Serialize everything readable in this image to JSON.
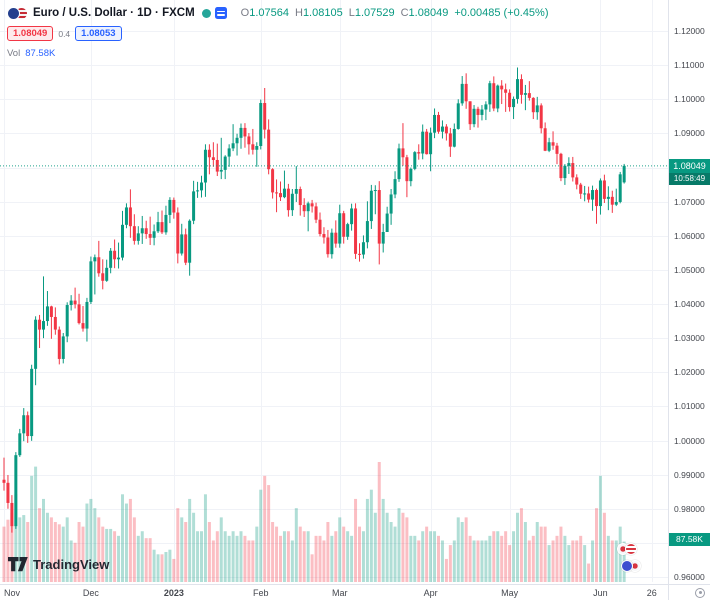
{
  "header": {
    "title": "Euro / U.S. Dollar · 1D · FXCM",
    "ohlc": {
      "o_label": "O",
      "o": "1.07564",
      "h_label": "H",
      "h": "1.08105",
      "l_label": "L",
      "l": "1.07529",
      "c_label": "C",
      "c": "1.08049",
      "change": "+0.00485 (+0.45%)"
    },
    "bid": "1.08049",
    "spread": "0.4",
    "ask": "1.08053",
    "vol_label": "Vol",
    "vol_value": "87.58K"
  },
  "price_axis": {
    "last_price_label": "1.08049",
    "countdown": "10:58:49",
    "volume_badge": "87.58K"
  },
  "watermark": {
    "text": "TradingView"
  },
  "icons": {
    "symbol_logo": "eur-usd-circle-flags",
    "market_status": "teal-dot",
    "stream": "blue-list",
    "axis_settings": "clock-circle",
    "watermark_logo": "tradingview-tv-mark",
    "stickers": "circle-flag-pairs"
  },
  "colors": {
    "up": "#089981",
    "down": "#f23645",
    "vol_up": "rgba(8,153,129,0.32)",
    "vol_down": "rgba(242,54,69,0.32)",
    "accent_blue": "#2962ff",
    "last_price_line": "#089981",
    "grid": "#f0f2f7"
  },
  "chart_data": {
    "type": "candlestick",
    "title": "Euro / U.S. Dollar, 1D, FXCM",
    "x_unit": "trading days, Nov 2022 - Jun 2023 (values per candle: [open, high, low, close, volume_K])",
    "price_range": [
      0.96,
      1.12
    ],
    "grid": true,
    "last_price": 1.08049,
    "y_tick_labels": [
      "1.12000",
      "1.11000",
      "1.10000",
      "1.09000",
      "1.08000",
      "1.07000",
      "1.06000",
      "1.05000",
      "1.04000",
      "1.03000",
      "1.02000",
      "1.01000",
      "1.00000",
      "0.99000",
      "0.98000",
      "0.97000",
      "0.96000"
    ],
    "x_ticks": [
      {
        "label": "Nov",
        "index": 0
      },
      {
        "label": "Dec",
        "index": 22
      },
      {
        "label": "2023",
        "index": 43,
        "bold": true
      },
      {
        "label": "Feb",
        "index": 65
      },
      {
        "label": "Mar",
        "index": 85
      },
      {
        "label": "Apr",
        "index": 108
      },
      {
        "label": "May",
        "index": 128
      },
      {
        "label": "Jun",
        "index": 151
      },
      {
        "label": "26",
        "index": 164
      }
    ],
    "candles": [
      [
        0.9885,
        0.995,
        0.9853,
        0.9876,
        120
      ],
      [
        0.9876,
        0.9899,
        0.98,
        0.9817,
        135
      ],
      [
        0.9817,
        0.984,
        0.973,
        0.9749,
        150
      ],
      [
        0.9749,
        0.9966,
        0.9741,
        0.9957,
        190
      ],
      [
        0.9957,
        1.0034,
        0.9952,
        1.0021,
        140
      ],
      [
        1.0021,
        1.0095,
        0.9998,
        1.0074,
        145
      ],
      [
        1.0074,
        1.0085,
        0.9993,
        1.0013,
        130
      ],
      [
        1.0013,
        1.0222,
        0.9999,
        1.021,
        230
      ],
      [
        1.021,
        1.0364,
        1.0162,
        1.0354,
        250
      ],
      [
        1.0354,
        1.0368,
        1.0271,
        1.0325,
        160
      ],
      [
        1.0325,
        1.0481,
        1.03,
        1.035,
        180
      ],
      [
        1.035,
        1.0438,
        1.0336,
        1.0393,
        150
      ],
      [
        1.0393,
        1.0395,
        1.0298,
        1.0362,
        140
      ],
      [
        1.0362,
        1.039,
        1.031,
        1.0325,
        130
      ],
      [
        1.0325,
        1.0334,
        1.0223,
        1.0239,
        125
      ],
      [
        1.0239,
        1.0315,
        1.0226,
        1.0305,
        120
      ],
      [
        1.0305,
        1.0405,
        1.0288,
        1.0397,
        140
      ],
      [
        1.0397,
        1.0426,
        1.0381,
        1.041,
        90
      ],
      [
        1.041,
        1.0448,
        1.0387,
        1.0399,
        85
      ],
      [
        1.0399,
        1.043,
        1.034,
        1.0344,
        130
      ],
      [
        1.0344,
        1.0394,
        1.0319,
        1.0328,
        120
      ],
      [
        1.0328,
        1.0418,
        1.029,
        1.0406,
        170
      ],
      [
        1.0406,
        1.0539,
        1.04,
        1.0525,
        180
      ],
      [
        1.0525,
        1.0545,
        1.0428,
        1.0537,
        160
      ],
      [
        1.0537,
        1.0585,
        1.048,
        1.049,
        140
      ],
      [
        1.049,
        1.0531,
        1.0443,
        1.0468,
        120
      ],
      [
        1.0468,
        1.053,
        1.0465,
        1.0506,
        115
      ],
      [
        1.0506,
        1.0564,
        1.049,
        1.0556,
        115
      ],
      [
        1.0556,
        1.0589,
        1.0505,
        1.0531,
        110
      ],
      [
        1.0531,
        1.058,
        1.0504,
        1.0536,
        100
      ],
      [
        1.0536,
        1.0673,
        1.0528,
        1.0632,
        190
      ],
      [
        1.0632,
        1.0695,
        1.0622,
        1.0683,
        170
      ],
      [
        1.0683,
        1.0736,
        1.0594,
        1.0628,
        180
      ],
      [
        1.0628,
        1.0663,
        1.0574,
        1.0585,
        140
      ],
      [
        1.0585,
        1.0628,
        1.0574,
        1.0607,
        100
      ],
      [
        1.0607,
        1.0658,
        1.0576,
        1.0622,
        110
      ],
      [
        1.0622,
        1.0644,
        1.0591,
        1.0605,
        95
      ],
      [
        1.0605,
        1.0656,
        1.0573,
        1.0594,
        95
      ],
      [
        1.0594,
        1.0633,
        1.0572,
        1.0613,
        70
      ],
      [
        1.0613,
        1.067,
        1.0608,
        1.064,
        60
      ],
      [
        1.064,
        1.0674,
        1.0605,
        1.061,
        60
      ],
      [
        1.061,
        1.0688,
        1.0603,
        1.0661,
        65
      ],
      [
        1.0661,
        1.0713,
        1.0637,
        1.0705,
        70
      ],
      [
        1.0705,
        1.0712,
        1.065,
        1.0668,
        50
      ],
      [
        1.0668,
        1.0683,
        1.0519,
        1.0548,
        160
      ],
      [
        1.0548,
        1.0635,
        1.0542,
        1.0604,
        140
      ],
      [
        1.0604,
        1.0621,
        1.0514,
        1.0521,
        130
      ],
      [
        1.0521,
        1.0648,
        1.0483,
        1.0644,
        180
      ],
      [
        1.0644,
        1.0761,
        1.0634,
        1.073,
        150
      ],
      [
        1.073,
        1.0758,
        1.0711,
        1.0733,
        110
      ],
      [
        1.0733,
        1.0776,
        1.0712,
        1.0756,
        110
      ],
      [
        1.0756,
        1.0868,
        1.0714,
        1.0852,
        190
      ],
      [
        1.0852,
        1.0868,
        1.078,
        1.083,
        130
      ],
      [
        1.083,
        1.0874,
        1.0802,
        1.0822,
        90
      ],
      [
        1.0822,
        1.087,
        1.0775,
        1.0788,
        110
      ],
      [
        1.0788,
        1.0887,
        1.0766,
        1.0793,
        140
      ],
      [
        1.0793,
        1.0836,
        1.0766,
        1.0832,
        110
      ],
      [
        1.0832,
        1.0868,
        1.0802,
        1.0856,
        100
      ],
      [
        1.0856,
        1.0927,
        1.0848,
        1.0871,
        110
      ],
      [
        1.0871,
        1.0899,
        1.0835,
        1.0887,
        100
      ],
      [
        1.0887,
        1.0929,
        1.0855,
        1.0916,
        110
      ],
      [
        1.0916,
        1.093,
        1.0858,
        1.0891,
        100
      ],
      [
        1.0891,
        1.0901,
        1.0838,
        1.0868,
        90
      ],
      [
        1.0868,
        1.0913,
        1.0838,
        1.0852,
        90
      ],
      [
        1.0852,
        1.0874,
        1.0802,
        1.0863,
        120
      ],
      [
        1.0863,
        1.0999,
        1.0853,
        1.0989,
        200
      ],
      [
        1.0989,
        1.1033,
        1.0885,
        1.0911,
        230
      ],
      [
        1.0911,
        1.0941,
        1.078,
        1.0795,
        210
      ],
      [
        1.0795,
        1.0798,
        1.0709,
        1.0727,
        130
      ],
      [
        1.0727,
        1.0765,
        1.0669,
        1.0725,
        120
      ],
      [
        1.0725,
        1.0759,
        1.0702,
        1.0713,
        100
      ],
      [
        1.0713,
        1.0791,
        1.071,
        1.0738,
        110
      ],
      [
        1.0738,
        1.0752,
        1.0656,
        1.0675,
        110
      ],
      [
        1.0675,
        1.0737,
        1.0658,
        1.0723,
        90
      ],
      [
        1.0723,
        1.0804,
        1.0699,
        1.0737,
        160
      ],
      [
        1.0737,
        1.0744,
        1.0659,
        1.069,
        120
      ],
      [
        1.069,
        1.071,
        1.0655,
        1.0672,
        110
      ],
      [
        1.0672,
        1.07,
        1.0613,
        1.0695,
        110
      ],
      [
        1.0695,
        1.0705,
        1.0668,
        1.0686,
        60
      ],
      [
        1.0686,
        1.0697,
        1.0637,
        1.0647,
        100
      ],
      [
        1.0647,
        1.0668,
        1.0598,
        1.0605,
        100
      ],
      [
        1.0605,
        1.0625,
        1.0577,
        1.0595,
        90
      ],
      [
        1.0595,
        1.0617,
        1.0536,
        1.0546,
        130
      ],
      [
        1.0546,
        1.0621,
        1.0533,
        1.0609,
        100
      ],
      [
        1.0609,
        1.0645,
        1.0565,
        1.0577,
        110
      ],
      [
        1.0577,
        1.0691,
        1.0565,
        1.0666,
        140
      ],
      [
        1.0666,
        1.0673,
        1.0577,
        1.0597,
        120
      ],
      [
        1.0597,
        1.0638,
        1.0588,
        1.0634,
        110
      ],
      [
        1.0634,
        1.0694,
        1.0615,
        1.068,
        100
      ],
      [
        1.068,
        1.0695,
        1.0532,
        1.0547,
        180
      ],
      [
        1.0547,
        1.0578,
        1.0524,
        1.0545,
        120
      ],
      [
        1.0545,
        1.0601,
        1.0533,
        1.0581,
        110
      ],
      [
        1.0581,
        1.0701,
        1.0563,
        1.0643,
        180
      ],
      [
        1.0643,
        1.0749,
        1.062,
        1.0732,
        200
      ],
      [
        1.0732,
        1.0748,
        1.0663,
        1.0734,
        150
      ],
      [
        1.0734,
        1.076,
        1.0516,
        1.0577,
        260
      ],
      [
        1.0577,
        1.0635,
        1.0551,
        1.0611,
        180
      ],
      [
        1.0611,
        1.0685,
        1.0611,
        1.0665,
        150
      ],
      [
        1.0665,
        1.0737,
        1.0632,
        1.0721,
        130
      ],
      [
        1.0721,
        1.0789,
        1.071,
        1.0766,
        120
      ],
      [
        1.0766,
        1.087,
        1.0758,
        1.0856,
        160
      ],
      [
        1.0856,
        1.093,
        1.0805,
        1.083,
        150
      ],
      [
        1.083,
        1.0837,
        1.0713,
        1.076,
        140
      ],
      [
        1.076,
        1.08,
        1.0745,
        1.0796,
        100
      ],
      [
        1.0796,
        1.0848,
        1.0792,
        1.0845,
        100
      ],
      [
        1.0845,
        1.0868,
        1.0823,
        1.0841,
        90
      ],
      [
        1.0841,
        1.0926,
        1.0824,
        1.0905,
        110
      ],
      [
        1.0905,
        1.0913,
        1.0838,
        1.0839,
        120
      ],
      [
        1.0839,
        1.0917,
        1.0789,
        1.0902,
        110
      ],
      [
        1.0902,
        1.0973,
        1.0886,
        1.0954,
        110
      ],
      [
        1.0954,
        1.0963,
        1.0899,
        1.0905,
        100
      ],
      [
        1.0905,
        1.0938,
        1.0885,
        1.092,
        90
      ],
      [
        1.092,
        1.0927,
        1.0879,
        1.09,
        50
      ],
      [
        1.09,
        1.0916,
        1.0831,
        1.0861,
        80
      ],
      [
        1.0861,
        1.0929,
        1.0859,
        1.0913,
        90
      ],
      [
        1.0913,
        1.1,
        1.0911,
        1.0988,
        140
      ],
      [
        1.0988,
        1.1068,
        1.0981,
        1.1045,
        130
      ],
      [
        1.1045,
        1.1076,
        1.0972,
        1.0994,
        140
      ],
      [
        1.0994,
        1.0994,
        1.091,
        1.0927,
        100
      ],
      [
        1.0927,
        1.0983,
        1.0918,
        1.0972,
        90
      ],
      [
        1.0972,
        1.0978,
        1.0917,
        1.0954,
        90
      ],
      [
        1.0954,
        1.0983,
        1.0938,
        1.097,
        90
      ],
      [
        1.097,
        1.0994,
        1.0939,
        1.0985,
        90
      ],
      [
        1.0985,
        1.1054,
        1.0963,
        1.1047,
        100
      ],
      [
        1.1047,
        1.1067,
        1.0965,
        1.0973,
        110
      ],
      [
        1.0973,
        1.1043,
        1.0962,
        1.104,
        110
      ],
      [
        1.104,
        1.1056,
        1.0986,
        1.1029,
        100
      ],
      [
        1.1029,
        1.1046,
        1.0963,
        1.1019,
        110
      ],
      [
        1.1019,
        1.1029,
        1.0964,
        1.0977,
        80
      ],
      [
        1.0977,
        1.1008,
        1.0942,
        1.1001,
        110
      ],
      [
        1.1001,
        1.1093,
        1.0987,
        1.1059,
        150
      ],
      [
        1.1059,
        1.1073,
        1.0987,
        1.1013,
        160
      ],
      [
        1.1013,
        1.1042,
        1.0968,
        1.1018,
        130
      ],
      [
        1.1018,
        1.1053,
        1.0996,
        1.1004,
        90
      ],
      [
        1.1004,
        1.1006,
        1.0942,
        1.0962,
        100
      ],
      [
        1.0962,
        1.1007,
        1.094,
        1.0982,
        130
      ],
      [
        1.0982,
        1.0988,
        1.09,
        1.0915,
        120
      ],
      [
        1.0915,
        1.0932,
        1.0848,
        1.0849,
        120
      ],
      [
        1.0849,
        1.0887,
        1.0845,
        1.0874,
        80
      ],
      [
        1.0874,
        1.0906,
        1.0852,
        1.0864,
        90
      ],
      [
        1.0864,
        1.0872,
        1.081,
        1.084,
        100
      ],
      [
        1.084,
        1.0843,
        1.076,
        1.0769,
        120
      ],
      [
        1.0769,
        1.081,
        1.0749,
        1.0805,
        100
      ],
      [
        1.0805,
        1.083,
        1.0781,
        1.0813,
        80
      ],
      [
        1.0813,
        1.0831,
        1.0759,
        1.0771,
        90
      ],
      [
        1.0771,
        1.078,
        1.0736,
        1.075,
        90
      ],
      [
        1.075,
        1.0755,
        1.0708,
        1.0723,
        100
      ],
      [
        1.0723,
        1.0746,
        1.0701,
        1.0724,
        80
      ],
      [
        1.0724,
        1.0744,
        1.0697,
        1.0706,
        40
      ],
      [
        1.0706,
        1.0747,
        1.0673,
        1.0734,
        90
      ],
      [
        1.0734,
        1.0738,
        1.0635,
        1.0687,
        160
      ],
      [
        1.0687,
        1.0768,
        1.0662,
        1.0762,
        230
      ],
      [
        1.0762,
        1.0779,
        1.0696,
        1.0708,
        150
      ],
      [
        1.0708,
        1.0745,
        1.0675,
        1.0714,
        100
      ],
      [
        1.0714,
        1.0732,
        1.0667,
        1.0691,
        90
      ],
      [
        1.0691,
        1.0738,
        1.0687,
        1.0699,
        90
      ],
      [
        1.0699,
        1.0787,
        1.0695,
        1.078,
        120
      ],
      [
        1.07564,
        1.08105,
        1.07529,
        1.08049,
        87.58
      ]
    ]
  }
}
